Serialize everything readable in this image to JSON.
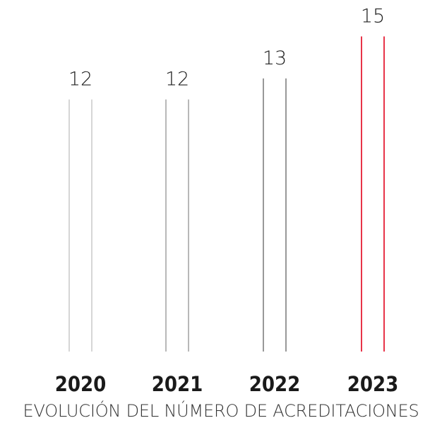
{
  "chart_data": {
    "type": "bar",
    "categories": [
      "2020",
      "2021",
      "2022",
      "2023"
    ],
    "values": [
      12,
      12,
      13,
      15
    ],
    "colors": [
      "#cccccc",
      "#a6a6a6",
      "#7f7f7f",
      "#e3001b"
    ],
    "caption": "EVOLUCIÓN DEL NÚMERO DE ACREDITACIONES",
    "grid": false
  }
}
